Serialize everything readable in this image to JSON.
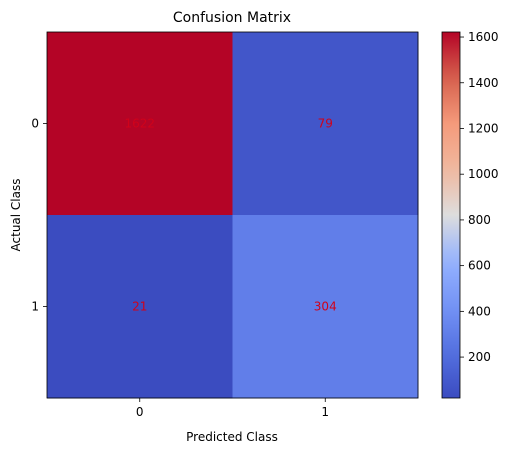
{
  "chart_data": {
    "type": "heatmap",
    "title": "Confusion Matrix",
    "xlabel": "Predicted Class",
    "ylabel": "Actual Class",
    "x_categories": [
      "0",
      "1"
    ],
    "y_categories": [
      "0",
      "1"
    ],
    "values": [
      [
        1622,
        79
      ],
      [
        21,
        304
      ]
    ],
    "cell_labels": [
      [
        "1622",
        "79"
      ],
      [
        "21",
        "304"
      ]
    ],
    "cell_label_color": "#d0021b",
    "colormap": "coolwarm",
    "vmin": 21,
    "vmax": 1622,
    "colorbar": {
      "ticks": [
        200,
        400,
        600,
        800,
        1000,
        1200,
        1400,
        1600
      ],
      "tick_labels": [
        "200",
        "400",
        "600",
        "800",
        "1000",
        "1200",
        "1400",
        "1600"
      ]
    },
    "grid": false
  }
}
